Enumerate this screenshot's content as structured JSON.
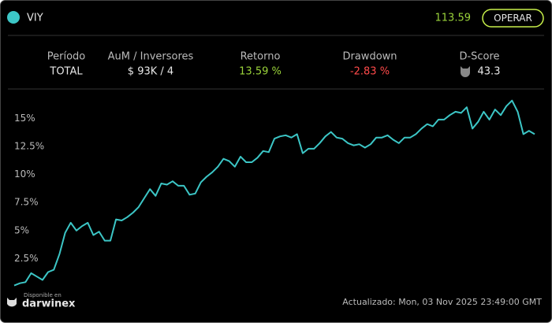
{
  "header": {
    "name": "VIY",
    "price": "113.59",
    "button": "OPERAR"
  },
  "stats": [
    {
      "label": "Período",
      "value": "TOTAL"
    },
    {
      "label": "AuM / Inversores",
      "value": "$ 93K / 4"
    },
    {
      "label": "Retorno",
      "value": "13.59 %"
    },
    {
      "label": "Drawdown",
      "value": "-2.83 %"
    },
    {
      "label": "D-Score",
      "value": "43.3"
    }
  ],
  "chart_data": {
    "type": "line",
    "color": "#3cc6c6",
    "values": [
      0.1,
      0.3,
      0.4,
      1.2,
      0.9,
      0.6,
      1.3,
      1.5,
      2.9,
      4.8,
      5.7,
      5.0,
      5.4,
      5.7,
      4.6,
      4.9,
      4.1,
      4.1,
      6.0,
      5.9,
      6.2,
      6.6,
      7.1,
      7.9,
      8.7,
      8.1,
      9.2,
      9.1,
      9.4,
      9.0,
      9.0,
      8.2,
      8.3,
      9.3,
      9.8,
      10.2,
      10.7,
      11.4,
      11.2,
      10.7,
      11.6,
      11.1,
      11.1,
      11.5,
      12.1,
      12.0,
      13.2,
      13.4,
      13.5,
      13.3,
      13.6,
      11.9,
      12.3,
      12.3,
      12.8,
      13.4,
      13.8,
      13.3,
      13.2,
      12.8,
      12.6,
      12.7,
      12.4,
      12.7,
      13.3,
      13.3,
      13.5,
      13.1,
      12.8,
      13.3,
      13.3,
      13.6,
      14.1,
      14.5,
      14.3,
      14.9,
      14.9,
      15.3,
      15.6,
      15.5,
      16.0,
      14.1,
      14.7,
      15.6,
      14.9,
      15.8,
      15.3,
      16.1,
      16.6,
      15.6,
      13.6,
      13.9,
      13.6
    ],
    "ylim": [
      0,
      17
    ],
    "yticks": [
      {
        "value": 2.5,
        "label": "2.5%"
      },
      {
        "value": 5,
        "label": "5%"
      },
      {
        "value": 7.5,
        "label": "7.5%"
      },
      {
        "value": 10,
        "label": "10%"
      },
      {
        "value": 12.5,
        "label": "12.5%"
      },
      {
        "value": 15,
        "label": "15%"
      }
    ]
  },
  "footer": {
    "badge_small": "Disponible en",
    "badge_brand": "darwinex",
    "updated": "Actualizado: Mon, 03 Nov 2025 23:49:00 GMT"
  }
}
